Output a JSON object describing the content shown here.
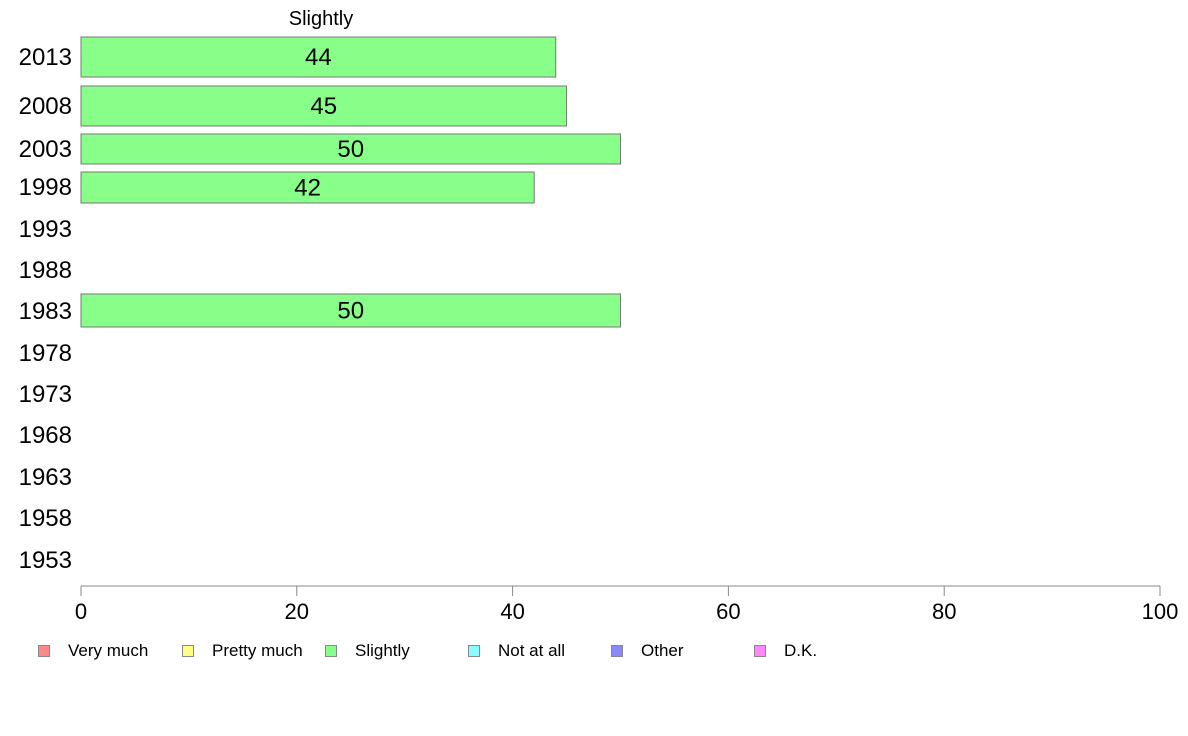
{
  "chart_data": {
    "type": "bar",
    "orientation": "horizontal",
    "title": "Slightly",
    "xlabel": "",
    "ylabel": "",
    "xlim": [
      0,
      100
    ],
    "x_ticks": [
      "0",
      "20",
      "40",
      "60",
      "80",
      "100"
    ],
    "grid": false,
    "legend_position": "bottom",
    "categories": [
      "2013",
      "2008",
      "2003",
      "1998",
      "1993",
      "1988",
      "1983",
      "1978",
      "1973",
      "1968",
      "1963",
      "1958",
      "1953"
    ],
    "series": [
      {
        "name": "Slightly",
        "color": "#88ff88",
        "values": [
          44,
          45,
          50,
          42,
          null,
          null,
          50,
          null,
          null,
          null,
          null,
          null,
          null
        ],
        "labels": [
          "44",
          "45",
          "50",
          "42",
          "",
          "",
          "50",
          "",
          "",
          "",
          "",
          "",
          ""
        ]
      }
    ],
    "legend": [
      {
        "label": "Very much",
        "color": "#ff8888"
      },
      {
        "label": "Pretty much",
        "color": "#ffff88"
      },
      {
        "label": "Slightly",
        "color": "#88ff88"
      },
      {
        "label": "Not at all",
        "color": "#88ffff"
      },
      {
        "label": "Other",
        "color": "#8888ff"
      },
      {
        "label": "D.K.",
        "color": "#ff88ff"
      }
    ]
  }
}
